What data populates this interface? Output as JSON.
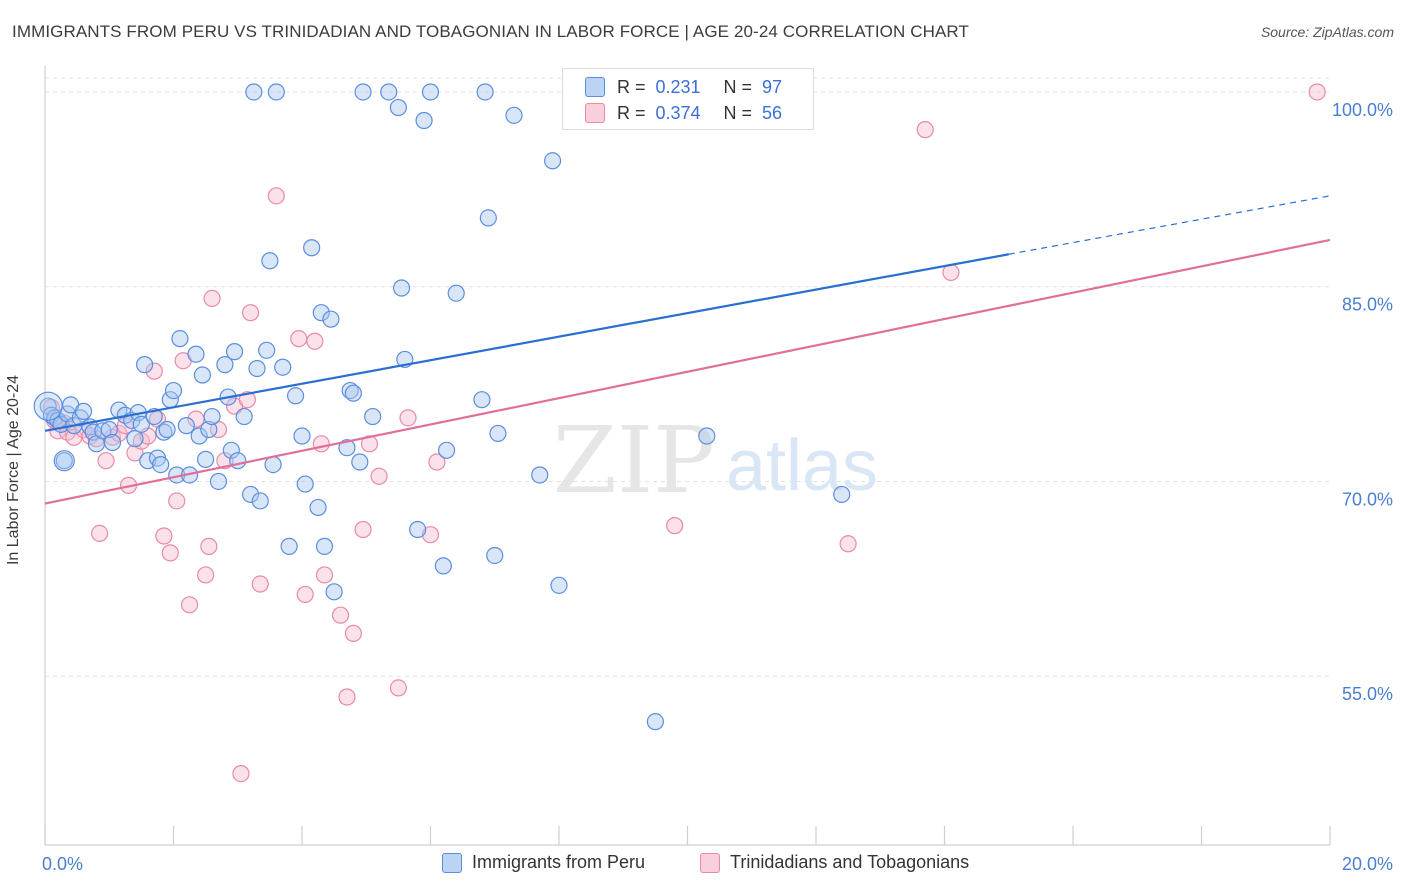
{
  "title": "IMMIGRANTS FROM PERU VS TRINIDADIAN AND TOBAGONIAN IN LABOR FORCE | AGE 20-24 CORRELATION CHART",
  "source": "Source: ZipAtlas.com",
  "watermark": {
    "zip": "ZIP",
    "atlas": "atlas"
  },
  "colors": {
    "blue_fill": "#a9c8f0",
    "blue_stroke": "#5b8ee0",
    "blue_line": "#2a6fd0",
    "pink_fill": "#f6bcd0",
    "pink_stroke": "#e88aaa",
    "pink_line": "#e0709a",
    "grid": "#e2e2e2",
    "axis_text": "#4a7fd0"
  },
  "stats": [
    {
      "r_label": "R =",
      "r_value": "0.231",
      "n_label": "N =",
      "n_value": "97"
    },
    {
      "r_label": "R =",
      "r_value": "0.374",
      "n_label": "N =",
      "n_value": "56"
    }
  ],
  "legend": [
    "Immigrants from Peru",
    "Trinidadians and Tobagonians"
  ],
  "chart_data": {
    "type": "scatter",
    "title": "IMMIGRANTS FROM PERU VS TRINIDADIAN AND TOBAGONIAN IN LABOR FORCE | AGE 20-24 CORRELATION CHART",
    "xlabel": "",
    "ylabel": "In Labor Force | Age 20-24",
    "xlim": [
      0,
      20
    ],
    "ylim": [
      42,
      102
    ],
    "x_tick_labels": [
      "0.0%",
      "20.0%"
    ],
    "y_ticks": [
      55,
      70,
      85,
      100
    ],
    "y_tick_labels": [
      "55.0%",
      "70.0%",
      "85.0%",
      "100.0%"
    ],
    "grid": true,
    "legend_position": "bottom",
    "series": [
      {
        "name": "Immigrants from Peru",
        "color": "#a9c8f0",
        "trend": {
          "x0": 0,
          "y0": 73.9,
          "x1": 15,
          "y1": 87.5,
          "dashed_to_x": 20,
          "dashed_to_y": 92.0
        },
        "points": [
          [
            0.05,
            75.8
          ],
          [
            0.1,
            75.1
          ],
          [
            0.15,
            74.9
          ],
          [
            0.2,
            74.7
          ],
          [
            0.25,
            74.4
          ],
          [
            0.3,
            71.6
          ],
          [
            0.35,
            75.2
          ],
          [
            0.4,
            75.9
          ],
          [
            0.45,
            74.3
          ],
          [
            0.55,
            74.9
          ],
          [
            0.6,
            75.4
          ],
          [
            0.7,
            74.2
          ],
          [
            0.75,
            73.8
          ],
          [
            0.8,
            72.9
          ],
          [
            0.9,
            73.9
          ],
          [
            1.0,
            74.0
          ],
          [
            1.05,
            73.0
          ],
          [
            1.15,
            75.5
          ],
          [
            1.25,
            75.1
          ],
          [
            1.35,
            74.7
          ],
          [
            1.4,
            73.3
          ],
          [
            1.45,
            75.3
          ],
          [
            1.5,
            74.4
          ],
          [
            1.55,
            79.0
          ],
          [
            1.6,
            71.6
          ],
          [
            1.7,
            75.0
          ],
          [
            1.75,
            71.8
          ],
          [
            1.8,
            71.3
          ],
          [
            1.85,
            73.8
          ],
          [
            1.9,
            74.0
          ],
          [
            1.95,
            76.3
          ],
          [
            2.0,
            77.0
          ],
          [
            2.05,
            70.5
          ],
          [
            2.1,
            81.0
          ],
          [
            2.2,
            74.3
          ],
          [
            2.25,
            70.5
          ],
          [
            2.35,
            79.8
          ],
          [
            2.4,
            73.5
          ],
          [
            2.45,
            78.2
          ],
          [
            2.5,
            71.7
          ],
          [
            2.55,
            74.0
          ],
          [
            2.6,
            75.0
          ],
          [
            2.7,
            70.0
          ],
          [
            2.8,
            79.0
          ],
          [
            2.85,
            76.5
          ],
          [
            2.9,
            72.4
          ],
          [
            2.95,
            80.0
          ],
          [
            3.0,
            71.6
          ],
          [
            3.1,
            75.0
          ],
          [
            3.2,
            69.0
          ],
          [
            3.25,
            100.0
          ],
          [
            3.3,
            78.7
          ],
          [
            3.35,
            68.5
          ],
          [
            3.45,
            80.1
          ],
          [
            3.5,
            87.0
          ],
          [
            3.55,
            71.3
          ],
          [
            3.6,
            100.0
          ],
          [
            3.7,
            78.8
          ],
          [
            3.8,
            65.0
          ],
          [
            3.9,
            76.6
          ],
          [
            4.0,
            73.5
          ],
          [
            4.05,
            69.8
          ],
          [
            4.15,
            88.0
          ],
          [
            4.25,
            68.0
          ],
          [
            4.3,
            83.0
          ],
          [
            4.35,
            65.0
          ],
          [
            4.45,
            82.5
          ],
          [
            4.5,
            61.5
          ],
          [
            4.7,
            72.6
          ],
          [
            4.75,
            77.0
          ],
          [
            4.8,
            76.8
          ],
          [
            4.9,
            71.5
          ],
          [
            4.95,
            100.0
          ],
          [
            5.1,
            75.0
          ],
          [
            5.35,
            100.0
          ],
          [
            5.5,
            98.8
          ],
          [
            5.55,
            84.9
          ],
          [
            5.6,
            79.4
          ],
          [
            5.8,
            66.3
          ],
          [
            5.9,
            97.8
          ],
          [
            6.0,
            100.0
          ],
          [
            6.2,
            63.5
          ],
          [
            6.25,
            72.4
          ],
          [
            6.4,
            84.5
          ],
          [
            6.8,
            76.3
          ],
          [
            6.85,
            100.0
          ],
          [
            6.9,
            90.3
          ],
          [
            7.0,
            64.3
          ],
          [
            7.05,
            73.7
          ],
          [
            7.3,
            98.2
          ],
          [
            7.7,
            70.5
          ],
          [
            7.9,
            94.7
          ],
          [
            8.0,
            62.0
          ],
          [
            9.5,
            51.5
          ],
          [
            10.3,
            73.5
          ],
          [
            12.4,
            69.0
          ],
          [
            9.3,
            100.0
          ]
        ]
      },
      {
        "name": "Trinidadians and Tobagonians",
        "color": "#f6bcd0",
        "trend": {
          "x0": 0,
          "y0": 68.3,
          "x1": 20,
          "y1": 88.6
        },
        "points": [
          [
            0.1,
            75.7
          ],
          [
            0.15,
            74.7
          ],
          [
            0.2,
            73.9
          ],
          [
            0.3,
            74.5
          ],
          [
            0.35,
            73.8
          ],
          [
            0.45,
            73.4
          ],
          [
            0.6,
            74.0
          ],
          [
            0.7,
            73.5
          ],
          [
            0.8,
            73.3
          ],
          [
            0.85,
            66.0
          ],
          [
            0.95,
            71.6
          ],
          [
            1.05,
            73.4
          ],
          [
            1.15,
            73.7
          ],
          [
            1.25,
            74.3
          ],
          [
            1.3,
            69.7
          ],
          [
            1.4,
            72.2
          ],
          [
            1.5,
            73.1
          ],
          [
            1.6,
            73.5
          ],
          [
            1.7,
            78.5
          ],
          [
            1.75,
            74.8
          ],
          [
            1.85,
            65.8
          ],
          [
            1.95,
            64.5
          ],
          [
            2.05,
            68.5
          ],
          [
            2.15,
            79.3
          ],
          [
            2.25,
            60.5
          ],
          [
            2.35,
            74.8
          ],
          [
            2.5,
            62.8
          ],
          [
            2.55,
            65.0
          ],
          [
            2.6,
            84.1
          ],
          [
            2.7,
            74.0
          ],
          [
            2.8,
            71.6
          ],
          [
            2.95,
            75.8
          ],
          [
            3.05,
            47.5
          ],
          [
            3.15,
            76.3
          ],
          [
            3.2,
            83.0
          ],
          [
            3.35,
            62.1
          ],
          [
            3.6,
            92.0
          ],
          [
            3.95,
            81.0
          ],
          [
            4.05,
            61.3
          ],
          [
            4.2,
            80.8
          ],
          [
            4.3,
            72.9
          ],
          [
            4.35,
            62.8
          ],
          [
            4.6,
            59.7
          ],
          [
            4.7,
            53.4
          ],
          [
            4.8,
            58.3
          ],
          [
            4.95,
            66.3
          ],
          [
            5.05,
            72.9
          ],
          [
            5.2,
            70.4
          ],
          [
            5.5,
            54.1
          ],
          [
            5.65,
            74.9
          ],
          [
            6.0,
            65.9
          ],
          [
            6.1,
            71.5
          ],
          [
            9.8,
            66.6
          ],
          [
            12.5,
            65.2
          ],
          [
            13.7,
            97.1
          ],
          [
            14.1,
            86.1
          ],
          [
            19.8,
            100.0
          ]
        ]
      }
    ]
  }
}
